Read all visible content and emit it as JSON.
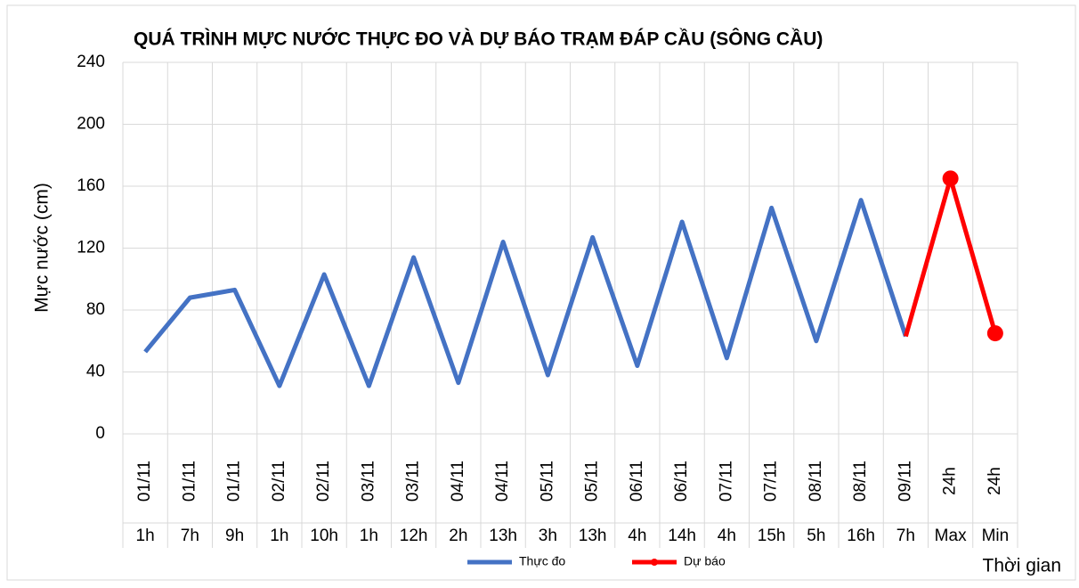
{
  "chart_data": {
    "type": "line",
    "title": "QUÁ TRÌNH MỰC NƯỚC THỰC ĐO VÀ DỰ BÁO TRẠM ĐÁP CẦU (SÔNG CẦU)",
    "y_label": "Mực nước (cm)",
    "x_label": "Thời gian",
    "category_groups": [
      "01/11",
      "01/11",
      "01/11",
      "02/11",
      "02/11",
      "03/11",
      "03/11",
      "04/11",
      "04/11",
      "05/11",
      "05/11",
      "06/11",
      "06/11",
      "07/11",
      "07/11",
      "08/11",
      "08/11",
      "09/11",
      "24h",
      "24h"
    ],
    "categories": [
      "1h",
      "7h",
      "9h",
      "1h",
      "10h",
      "1h",
      "12h",
      "2h",
      "13h",
      "3h",
      "13h",
      "4h",
      "14h",
      "4h",
      "15h",
      "5h",
      "16h",
      "7h",
      "Max",
      "Min"
    ],
    "series": [
      {
        "name": "Thực đo",
        "color": "#4472c4",
        "values": [
          53,
          88,
          93,
          31,
          103,
          31,
          114,
          33,
          124,
          38,
          127,
          44,
          137,
          49,
          146,
          60,
          151,
          63,
          null,
          null
        ]
      },
      {
        "name": "Dự báo",
        "color": "#ff0000",
        "values": [
          null,
          null,
          null,
          null,
          null,
          null,
          null,
          null,
          null,
          null,
          null,
          null,
          null,
          null,
          null,
          null,
          null,
          63,
          165,
          65
        ]
      }
    ],
    "ylim": [
      0,
      240
    ],
    "yticks": [
      0,
      40,
      80,
      120,
      160,
      200,
      240
    ],
    "grid": true,
    "legend": "bottom"
  }
}
